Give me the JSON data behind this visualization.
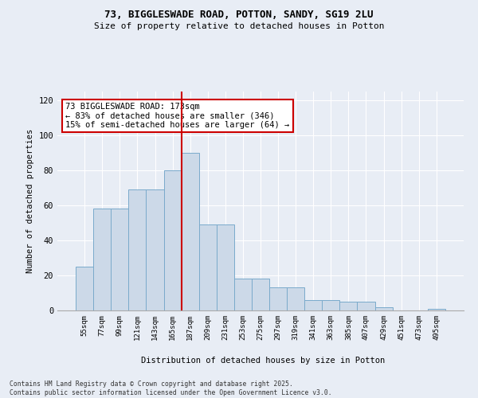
{
  "title_line1": "73, BIGGLESWADE ROAD, POTTON, SANDY, SG19 2LU",
  "title_line2": "Size of property relative to detached houses in Potton",
  "xlabel": "Distribution of detached houses by size in Potton",
  "ylabel": "Number of detached properties",
  "bar_labels": [
    "55sqm",
    "77sqm",
    "99sqm",
    "121sqm",
    "143sqm",
    "165sqm",
    "187sqm",
    "209sqm",
    "231sqm",
    "253sqm",
    "275sqm",
    "297sqm",
    "319sqm",
    "341sqm",
    "363sqm",
    "385sqm",
    "407sqm",
    "429sqm",
    "451sqm",
    "473sqm",
    "495sqm"
  ],
  "bar_values": [
    25,
    58,
    58,
    69,
    69,
    80,
    90,
    49,
    49,
    18,
    18,
    13,
    13,
    6,
    6,
    5,
    5,
    2,
    0,
    0,
    1
  ],
  "bar_color": "#ccd9e8",
  "bar_edge_color": "#7aaacb",
  "vline_color": "#cc0000",
  "annotation_text": "73 BIGGLESWADE ROAD: 173sqm\n← 83% of detached houses are smaller (346)\n15% of semi-detached houses are larger (64) →",
  "annotation_box_color": "white",
  "annotation_box_edge": "#cc0000",
  "ylim": [
    0,
    125
  ],
  "yticks": [
    0,
    20,
    40,
    60,
    80,
    100,
    120
  ],
  "background_color": "#e8edf5",
  "grid_color": "white",
  "footnote": "Contains HM Land Registry data © Crown copyright and database right 2025.\nContains public sector information licensed under the Open Government Licence v3.0."
}
